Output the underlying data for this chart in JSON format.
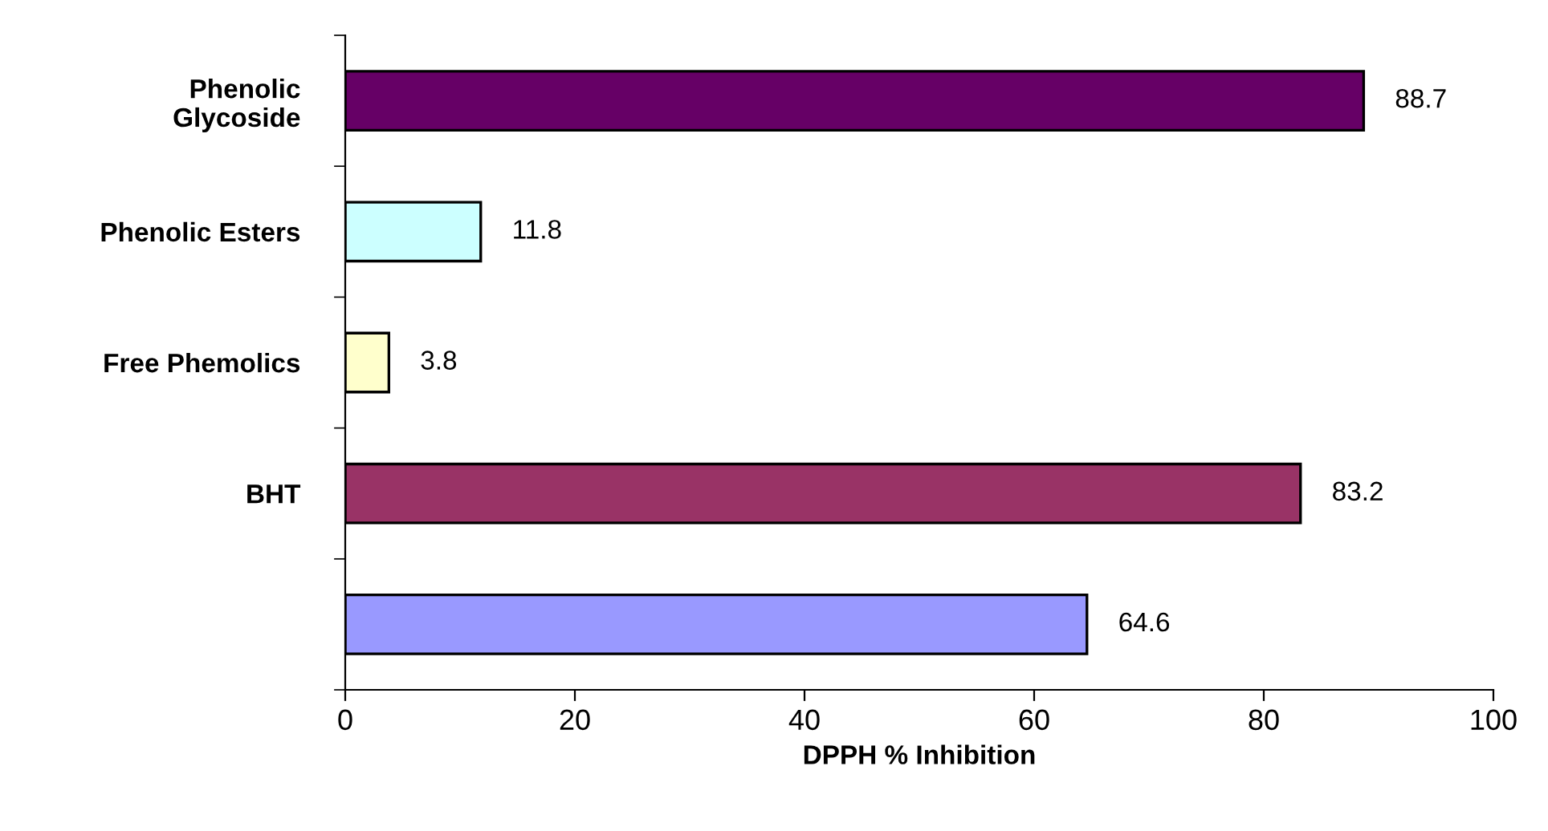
{
  "chart_data": {
    "type": "bar",
    "orientation": "horizontal",
    "categories": [
      "Phenolic\nGlycoside",
      "Phenolic Esters",
      "Free Phemolics",
      "BHT",
      null
    ],
    "values": [
      88.7,
      11.8,
      3.8,
      83.2,
      64.6
    ],
    "colors": [
      "#660066",
      "#ccffff",
      "#ffffcc",
      "#993366",
      "#9999ff"
    ],
    "xlabel": "DPPH % Inhibition",
    "xlim": [
      0,
      100
    ],
    "xticks": [
      0,
      20,
      40,
      60,
      80,
      100
    ],
    "data_labels": true,
    "grid": false,
    "legend": false
  }
}
